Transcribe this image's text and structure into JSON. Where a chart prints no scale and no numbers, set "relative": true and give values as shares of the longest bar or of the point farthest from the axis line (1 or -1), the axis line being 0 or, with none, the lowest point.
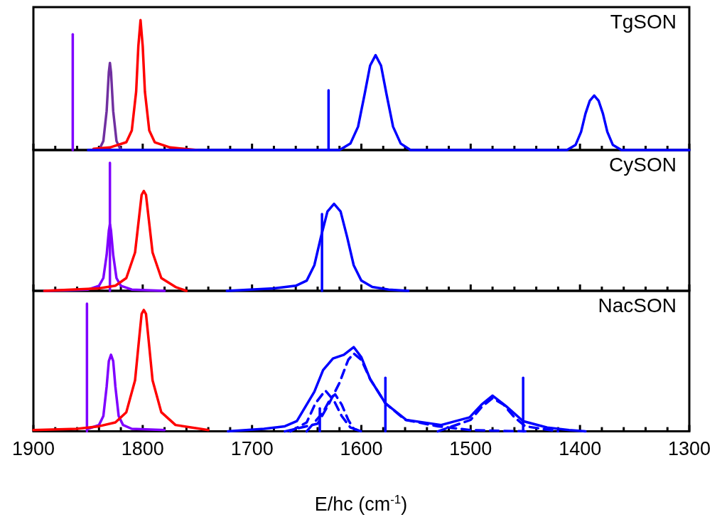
{
  "chart_data": [
    {
      "type": "line",
      "relative": true,
      "marker": "none",
      "grid": false,
      "tick_labels": false,
      "annotations": [
        "TgSON"
      ],
      "xlim": [
        1900,
        1300
      ],
      "xticks": [
        1900,
        {
          "value": 1880,
          "label": null
        },
        {
          "value": 1860,
          "label": null
        },
        {
          "value": 1840,
          "label": null
        },
        {
          "value": 1820,
          "label": null
        },
        1800,
        {
          "value": 1780,
          "label": null
        },
        {
          "value": 1760,
          "label": null
        },
        {
          "value": 1740,
          "label": null
        },
        {
          "value": 1720,
          "label": null
        },
        1700,
        {
          "value": 1680,
          "label": null
        },
        {
          "value": 1660,
          "label": null
        },
        {
          "value": 1640,
          "label": null
        },
        {
          "value": 1620,
          "label": null
        },
        1600,
        {
          "value": 1580,
          "label": null
        },
        {
          "value": 1560,
          "label": null
        },
        {
          "value": 1540,
          "label": null
        },
        {
          "value": 1520,
          "label": null
        },
        1500,
        {
          "value": 1480,
          "label": null
        },
        {
          "value": 1460,
          "label": null
        },
        {
          "value": 1440,
          "label": null
        },
        {
          "value": 1420,
          "label": null
        },
        1400,
        {
          "value": 1380,
          "label": null
        },
        {
          "value": 1360,
          "label": null
        },
        {
          "value": 1340,
          "label": null
        },
        {
          "value": 1320,
          "label": null
        },
        1300
      ],
      "series": [
        {
          "color": "#0000ff",
          "x": [
            1850,
            1620,
            1610,
            1603,
            1597,
            1592,
            1587,
            1582,
            1577,
            1571,
            1564,
            1555,
            1412,
            1404,
            1399,
            1395,
            1391,
            1387,
            1383,
            1379,
            1375,
            1370,
            1362,
            1300
          ],
          "values": [
            0,
            0,
            0.05,
            0.18,
            0.43,
            0.65,
            0.73,
            0.65,
            0.43,
            0.18,
            0.05,
            0,
            0,
            0.04,
            0.14,
            0.28,
            0.38,
            0.42,
            0.38,
            0.28,
            0.14,
            0.04,
            0,
            0
          ]
        },
        {
          "color": "#0000ff",
          "x": [
            1630,
            1630
          ],
          "values": [
            0,
            0.46
          ]
        },
        {
          "color": "#ff0000",
          "x": [
            1845,
            1830,
            1815,
            1810,
            1806,
            1804,
            1802,
            1800,
            1798,
            1794,
            1789,
            1775,
            1750
          ],
          "values": [
            0.01,
            0.02,
            0.06,
            0.15,
            0.45,
            0.8,
            1,
            0.8,
            0.45,
            0.15,
            0.06,
            0.02,
            0
          ]
        },
        {
          "color": "#7030a0",
          "x": [
            1840,
            1836,
            1833,
            1831,
            1830,
            1829,
            1827,
            1824,
            1820
          ],
          "values": [
            0,
            0.07,
            0.3,
            0.6,
            0.67,
            0.6,
            0.3,
            0.07,
            0
          ]
        },
        {
          "color": "#7f00ff",
          "x": [
            1864,
            1864
          ],
          "values": [
            0,
            0.89
          ]
        }
      ]
    },
    {
      "type": "line",
      "relative": true,
      "marker": "none",
      "grid": false,
      "tick_labels": false,
      "annotations": [
        "CySON"
      ],
      "xlim": [
        1900,
        1300
      ],
      "xticks": [
        1900,
        {
          "value": 1880,
          "label": null
        },
        {
          "value": 1860,
          "label": null
        },
        {
          "value": 1840,
          "label": null
        },
        {
          "value": 1820,
          "label": null
        },
        1800,
        {
          "value": 1780,
          "label": null
        },
        {
          "value": 1760,
          "label": null
        },
        {
          "value": 1740,
          "label": null
        },
        {
          "value": 1720,
          "label": null
        },
        1700,
        {
          "value": 1680,
          "label": null
        },
        {
          "value": 1660,
          "label": null
        },
        {
          "value": 1640,
          "label": null
        },
        {
          "value": 1620,
          "label": null
        },
        1600,
        {
          "value": 1580,
          "label": null
        },
        {
          "value": 1560,
          "label": null
        },
        {
          "value": 1540,
          "label": null
        },
        {
          "value": 1520,
          "label": null
        },
        1500,
        {
          "value": 1480,
          "label": null
        },
        {
          "value": 1460,
          "label": null
        },
        {
          "value": 1440,
          "label": null
        },
        {
          "value": 1420,
          "label": null
        },
        1400,
        {
          "value": 1380,
          "label": null
        },
        {
          "value": 1360,
          "label": null
        },
        {
          "value": 1340,
          "label": null
        },
        {
          "value": 1320,
          "label": null
        },
        1300
      ],
      "series": [
        {
          "color": "#0000ff",
          "x": [
            1723,
            1680,
            1660,
            1650,
            1643,
            1637,
            1631,
            1625,
            1619,
            1613,
            1607,
            1600,
            1590,
            1575,
            1557
          ],
          "values": [
            0,
            0.02,
            0.04,
            0.08,
            0.2,
            0.42,
            0.62,
            0.68,
            0.62,
            0.42,
            0.2,
            0.08,
            0.03,
            0.01,
            0
          ]
        },
        {
          "color": "#0000ff",
          "x": [
            1636,
            1636
          ],
          "values": [
            0,
            0.6
          ]
        },
        {
          "color": "#ff0000",
          "x": [
            1890,
            1840,
            1825,
            1815,
            1807,
            1803,
            1801,
            1799,
            1797,
            1795,
            1791,
            1783,
            1770,
            1760
          ],
          "values": [
            0,
            0.02,
            0.04,
            0.1,
            0.3,
            0.6,
            0.75,
            0.78,
            0.75,
            0.6,
            0.3,
            0.1,
            0.03,
            0
          ]
        },
        {
          "color": "#7f00ff",
          "x": [
            1890,
            1850,
            1840,
            1836,
            1833,
            1831,
            1830,
            1829,
            1827,
            1824,
            1820,
            1810,
            1780
          ],
          "values": [
            0,
            0.01,
            0.04,
            0.1,
            0.28,
            0.47,
            0.52,
            0.47,
            0.28,
            0.1,
            0.04,
            0.01,
            0
          ]
        },
        {
          "color": "#7f00ff",
          "x": [
            1830,
            1830
          ],
          "values": [
            0,
            1
          ]
        }
      ]
    },
    {
      "type": "line",
      "relative": true,
      "marker": "none",
      "grid": false,
      "tick_labels": "x",
      "xlabel": "E/hc (cm$^{-1}$)",
      "annotations": [
        "NacSON"
      ],
      "xlim": [
        1900,
        1300
      ],
      "xticks": [
        1900,
        {
          "value": 1880,
          "label": null
        },
        {
          "value": 1860,
          "label": null
        },
        {
          "value": 1840,
          "label": null
        },
        {
          "value": 1820,
          "label": null
        },
        1800,
        {
          "value": 1780,
          "label": null
        },
        {
          "value": 1760,
          "label": null
        },
        {
          "value": 1740,
          "label": null
        },
        {
          "value": 1720,
          "label": null
        },
        1700,
        {
          "value": 1680,
          "label": null
        },
        {
          "value": 1660,
          "label": null
        },
        {
          "value": 1640,
          "label": null
        },
        {
          "value": 1620,
          "label": null
        },
        1600,
        {
          "value": 1580,
          "label": null
        },
        {
          "value": 1560,
          "label": null
        },
        {
          "value": 1540,
          "label": null
        },
        {
          "value": 1520,
          "label": null
        },
        1500,
        {
          "value": 1480,
          "label": null
        },
        {
          "value": 1460,
          "label": null
        },
        {
          "value": 1440,
          "label": null
        },
        {
          "value": 1420,
          "label": null
        },
        1400,
        {
          "value": 1380,
          "label": null
        },
        {
          "value": 1360,
          "label": null
        },
        {
          "value": 1340,
          "label": null
        },
        {
          "value": 1320,
          "label": null
        },
        1300
      ],
      "series": [
        {
          "color": "#0000ff",
          "line_style": "dashed",
          "x": [
            1670,
            1640,
            1630,
            1620,
            1612,
            1607,
            1600,
            1592,
            1578,
            1560,
            1530,
            1500,
            1450
          ],
          "values": [
            0,
            0.06,
            0.21,
            0.38,
            0.56,
            0.61,
            0.56,
            0.41,
            0.22,
            0.09,
            0.04,
            0.01,
            0
          ]
        },
        {
          "color": "#0000ff",
          "line_style": "dashed",
          "x": [
            1665,
            1650,
            1642,
            1633,
            1625,
            1618,
            1610,
            1600
          ],
          "values": [
            0,
            0.07,
            0.22,
            0.32,
            0.24,
            0.12,
            0.03,
            0
          ]
        },
        {
          "color": "#0000ff",
          "line_style": "dashed",
          "x": [
            1650,
            1635,
            1628,
            1624,
            1618,
            1612,
            1607,
            1600
          ],
          "values": [
            0,
            0.15,
            0.26,
            0.29,
            0.21,
            0.09,
            0.02,
            0
          ]
        },
        {
          "color": "#0000ff",
          "line_style": "dashed",
          "x": [
            1530,
            1500,
            1490,
            1480,
            1470,
            1460,
            1450,
            1420
          ],
          "values": [
            0,
            0.09,
            0.19,
            0.26,
            0.21,
            0.11,
            0.04,
            0
          ]
        },
        {
          "color": "#0000ff",
          "x": [
            1722,
            1689,
            1670,
            1659,
            1643,
            1635,
            1626,
            1616,
            1607,
            1600,
            1592,
            1578,
            1559,
            1527,
            1501,
            1490,
            1480,
            1468,
            1452,
            1430,
            1410,
            1395
          ],
          "values": [
            0,
            0.02,
            0.04,
            0.08,
            0.31,
            0.48,
            0.57,
            0.6,
            0.66,
            0.58,
            0.41,
            0.22,
            0.09,
            0.05,
            0.11,
            0.21,
            0.28,
            0.2,
            0.08,
            0.03,
            0.01,
            0
          ]
        },
        {
          "color": "#0000ff",
          "x": [
            1638,
            1638
          ],
          "values": [
            0,
            0.18
          ]
        },
        {
          "color": "#0000ff",
          "x": [
            1578,
            1578
          ],
          "values": [
            0,
            0.42
          ]
        },
        {
          "color": "#0000ff",
          "x": [
            1452,
            1452
          ],
          "values": [
            0,
            0.42
          ]
        },
        {
          "color": "#ff0000",
          "x": [
            1900,
            1860,
            1840,
            1825,
            1815,
            1807,
            1803,
            1801,
            1799,
            1797,
            1795,
            1791,
            1783,
            1770,
            1740
          ],
          "values": [
            0.01,
            0.02,
            0.04,
            0.07,
            0.15,
            0.4,
            0.75,
            0.92,
            0.95,
            0.92,
            0.75,
            0.4,
            0.15,
            0.05,
            0.01
          ]
        },
        {
          "color": "#7f00ff",
          "x": [
            1850,
            1840,
            1836,
            1833,
            1831,
            1829,
            1827,
            1825,
            1822,
            1818,
            1810,
            1780
          ],
          "values": [
            0.02,
            0.05,
            0.12,
            0.35,
            0.55,
            0.6,
            0.55,
            0.35,
            0.12,
            0.05,
            0.02,
            0.01
          ]
        },
        {
          "color": "#7f00ff",
          "x": [
            1851,
            1851
          ],
          "values": [
            0,
            1
          ]
        }
      ]
    }
  ]
}
